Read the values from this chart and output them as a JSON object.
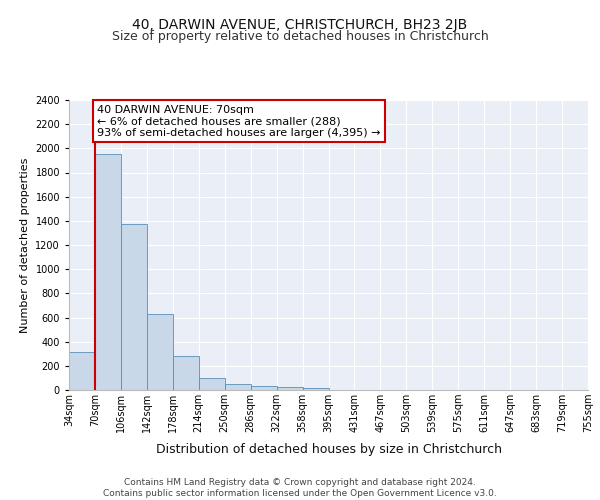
{
  "title1": "40, DARWIN AVENUE, CHRISTCHURCH, BH23 2JB",
  "title2": "Size of property relative to detached houses in Christchurch",
  "xlabel": "Distribution of detached houses by size in Christchurch",
  "ylabel": "Number of detached properties",
  "bin_labels": [
    "34sqm",
    "70sqm",
    "106sqm",
    "142sqm",
    "178sqm",
    "214sqm",
    "250sqm",
    "286sqm",
    "322sqm",
    "358sqm",
    "395sqm",
    "431sqm",
    "467sqm",
    "503sqm",
    "539sqm",
    "575sqm",
    "611sqm",
    "647sqm",
    "683sqm",
    "719sqm",
    "755sqm"
  ],
  "bar_values": [
    315,
    1950,
    1375,
    625,
    280,
    100,
    48,
    32,
    25,
    18,
    0,
    0,
    0,
    0,
    0,
    0,
    0,
    0,
    0,
    0
  ],
  "bar_color": "#c8d8e8",
  "bar_edge_color": "#5b8db8",
  "highlight_line_color": "#cc0000",
  "annotation_text": "40 DARWIN AVENUE: 70sqm\n← 6% of detached houses are smaller (288)\n93% of semi-detached houses are larger (4,395) →",
  "annotation_box_color": "#ffffff",
  "annotation_border_color": "#cc0000",
  "ylim": [
    0,
    2400
  ],
  "yticks": [
    0,
    200,
    400,
    600,
    800,
    1000,
    1200,
    1400,
    1600,
    1800,
    2000,
    2200,
    2400
  ],
  "footer_text": "Contains HM Land Registry data © Crown copyright and database right 2024.\nContains public sector information licensed under the Open Government Licence v3.0.",
  "bg_color": "#eaeff7",
  "grid_color": "#ffffff",
  "title1_fontsize": 10,
  "title2_fontsize": 9,
  "xlabel_fontsize": 9,
  "ylabel_fontsize": 8,
  "tick_fontsize": 7,
  "annotation_fontsize": 8,
  "footer_fontsize": 6.5
}
